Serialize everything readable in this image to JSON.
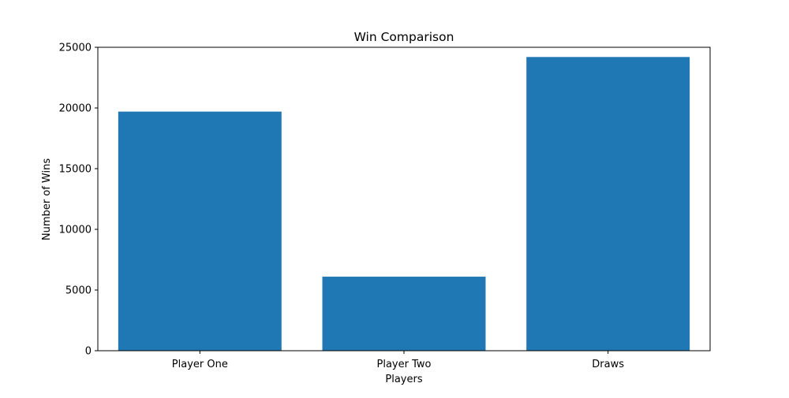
{
  "chart_data": {
    "type": "bar",
    "title": "Win Comparison",
    "xlabel": "Players",
    "ylabel": "Number of Wins",
    "categories": [
      "Player One",
      "Player Two",
      "Draws"
    ],
    "values": [
      19700,
      6100,
      24200
    ],
    "ylim": [
      0,
      25000
    ],
    "yticks": [
      "0",
      "5000",
      "10000",
      "15000",
      "20000",
      "25000"
    ],
    "grid": false,
    "legend": "none",
    "bar_color": "#1f77b4"
  }
}
